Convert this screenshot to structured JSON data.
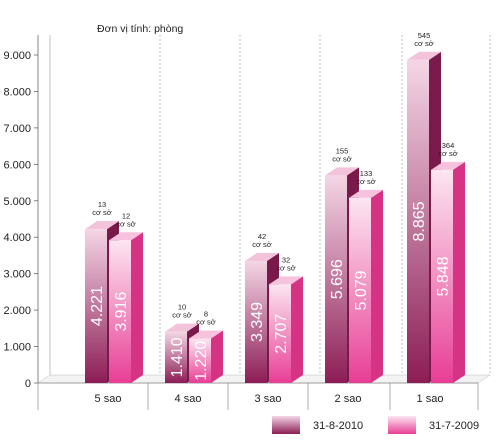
{
  "chart_data": {
    "type": "bar",
    "unit_label": "Đơn vị tính: phòng",
    "categories": [
      "5 sao",
      "4 sao",
      "3 sao",
      "2 sao",
      "1 sao"
    ],
    "ylim": [
      0,
      9000
    ],
    "y_ticks": [
      "0",
      "1.000",
      "2.000",
      "3.000",
      "4.000",
      "5.000",
      "6.000",
      "7.000",
      "8.000",
      "9.000"
    ],
    "grid": false,
    "legend_position": "bottom-right",
    "series": [
      {
        "name": "31-8-2010",
        "values": [
          4221,
          1410,
          3349,
          5696,
          8865
        ],
        "value_labels": [
          "4.221",
          "1.410",
          "3.349",
          "5.696",
          "8.865"
        ],
        "annotations": [
          "13",
          "10",
          "42",
          "155",
          "545"
        ],
        "color_top": "#f4d6e6",
        "color_bottom": "#8c1d55",
        "side_color": "#7a1a4b",
        "top_color": "#f2c3da"
      },
      {
        "name": "31-7-2009",
        "values": [
          3916,
          1220,
          2707,
          5079,
          5848
        ],
        "value_labels": [
          "3.916",
          "1.220",
          "2.707",
          "5.079",
          "5.848"
        ],
        "annotations": [
          "12",
          "8",
          "32",
          "133",
          "364"
        ],
        "color_top": "#fce6f1",
        "color_bottom": "#e83e95",
        "side_color": "#d63384",
        "top_color": "#f7c2dd"
      }
    ],
    "annotation_unit": "cơ sở"
  }
}
